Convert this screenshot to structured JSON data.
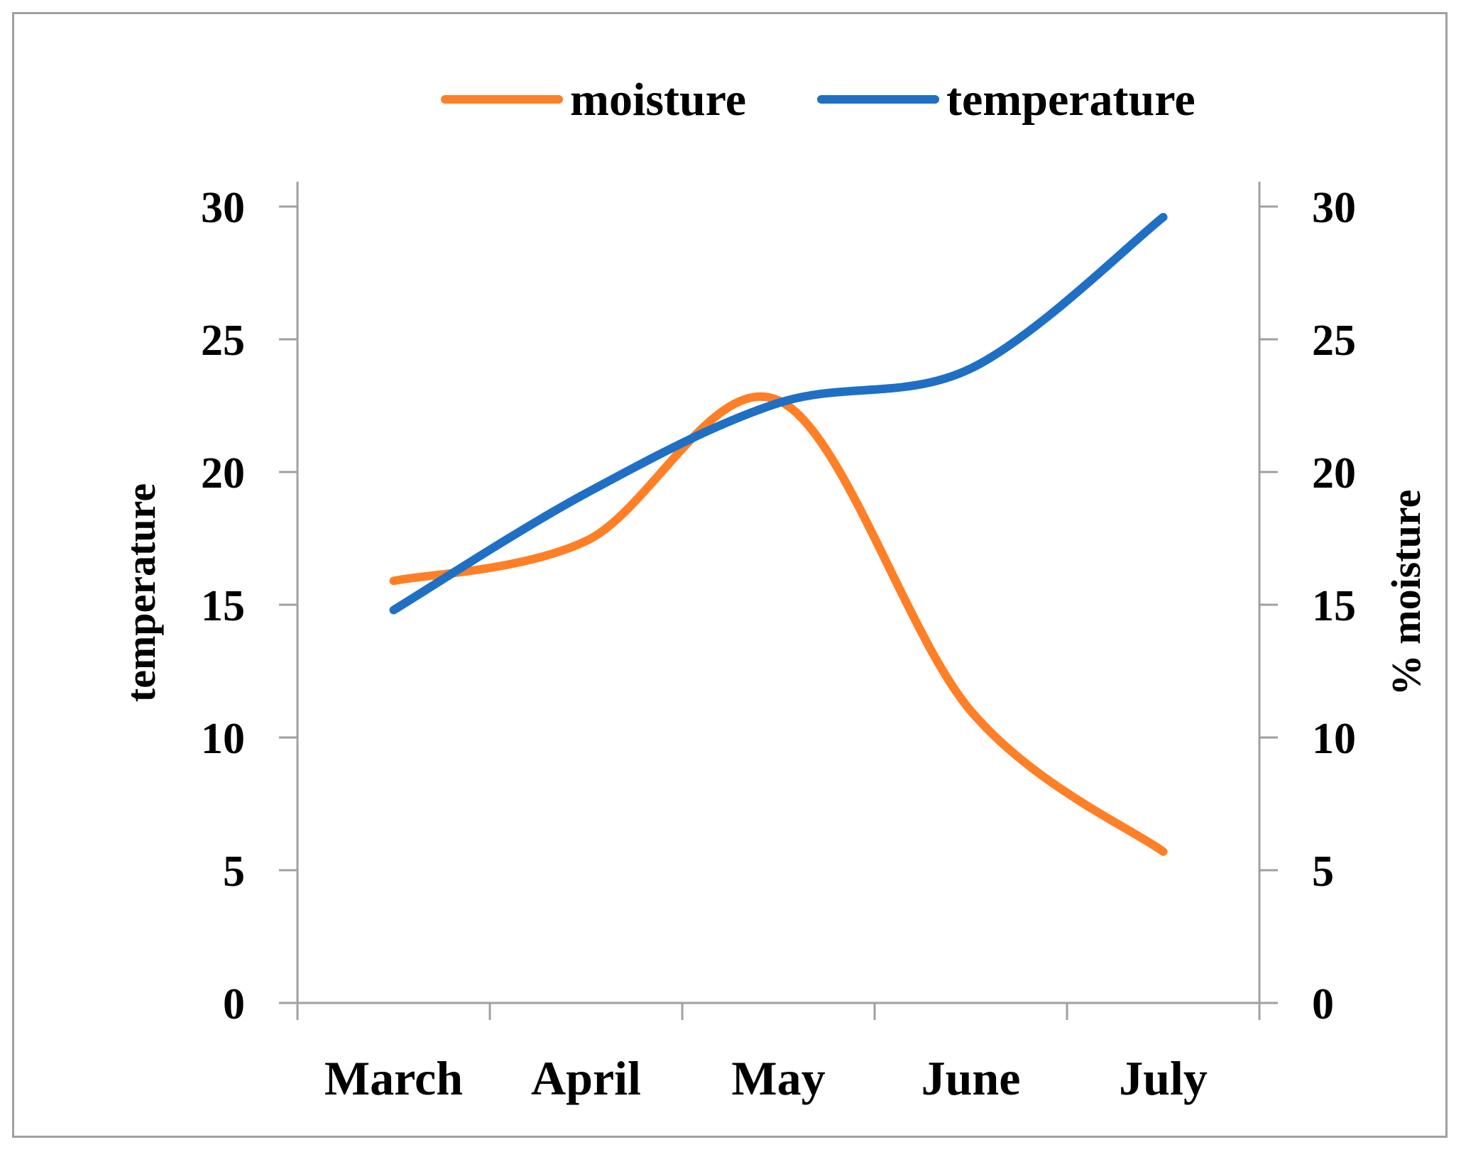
{
  "chart_data": {
    "type": "line",
    "title": "",
    "categories": [
      "March",
      "April",
      "May",
      "June",
      "July"
    ],
    "series": [
      {
        "name": "moisture",
        "axis": "right",
        "color": "#FF7F27",
        "values": [
          15.9,
          17.4,
          22.7,
          11.0,
          5.7
        ],
        "smooth": true
      },
      {
        "name": "temperature",
        "axis": "left",
        "color": "#1F6FC5",
        "values": [
          14.8,
          19.2,
          22.6,
          23.9,
          29.6
        ],
        "smooth": true
      }
    ],
    "ylabel_left": "temperature",
    "ylabel_right": "% moisture",
    "xlabel": "",
    "ylim_left": [
      0,
      30
    ],
    "ylim_right": [
      0,
      30
    ],
    "yticks": [
      "0",
      "5",
      "10",
      "15",
      "20",
      "25",
      "30"
    ],
    "grid": false,
    "legend": "top",
    "axis_color": "#a0a0a0"
  }
}
